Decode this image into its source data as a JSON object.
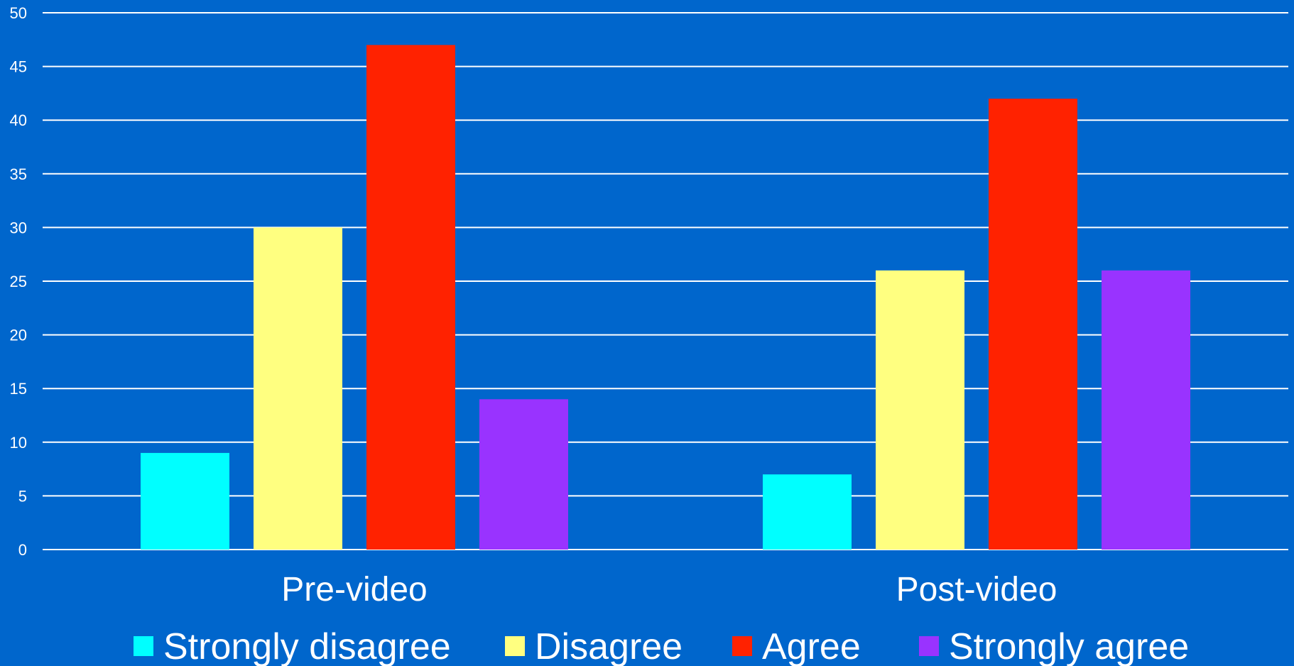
{
  "chart_data": {
    "type": "bar",
    "categories": [
      "Pre-video",
      "Post-video"
    ],
    "series": [
      {
        "name": "Strongly disagree",
        "color": "#00ffff",
        "values": [
          9,
          7
        ]
      },
      {
        "name": "Disagree",
        "color": "#ffff80",
        "values": [
          30,
          26
        ]
      },
      {
        "name": "Agree",
        "color": "#ff2200",
        "values": [
          47,
          42
        ]
      },
      {
        "name": "Strongly agree",
        "color": "#9933ff",
        "values": [
          14,
          26
        ]
      }
    ],
    "yticks": [
      "0",
      "5",
      "10",
      "15",
      "20",
      "25",
      "30",
      "35",
      "40",
      "45",
      "50"
    ],
    "ylim": [
      0,
      50
    ],
    "grid": true,
    "legend_position": "bottom",
    "title": "",
    "xlabel": "",
    "ylabel": "",
    "background": "#0066cc"
  }
}
